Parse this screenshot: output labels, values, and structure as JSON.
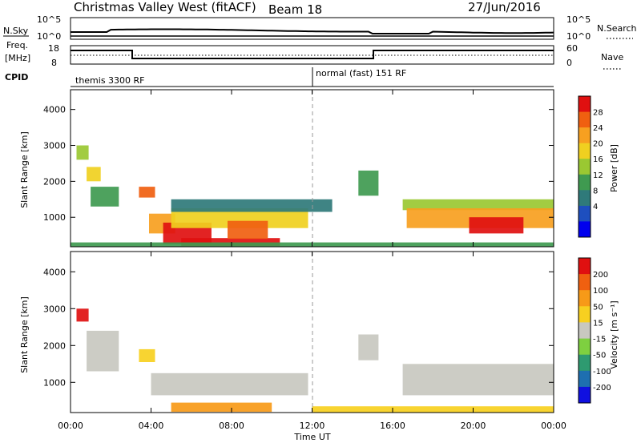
{
  "header": {
    "title": "Christmas Valley West (fitACF)",
    "beam": "Beam 18",
    "date": "27/Jun/2016"
  },
  "top_panels": {
    "nsky_label": "N.Sky",
    "nsky_ticks": [
      "10^5",
      "10^0"
    ],
    "nsearch_label": "N.Search",
    "nsearch_ticks": [
      "10^5",
      "10^0"
    ],
    "freq_label_line1": "Freq.",
    "freq_label_line2": "[MHz]",
    "freq_ticks": [
      "18",
      "8"
    ],
    "nave_label": "Nave",
    "nave_ticks": [
      "60",
      "0"
    ],
    "cpid_label": "CPID",
    "cpid_left": "themis 3300 RF",
    "cpid_right": "normal (fast) 151 RF"
  },
  "x_axis": {
    "label": "Time UT",
    "ticks": [
      "00:00",
      "04:00",
      "08:00",
      "12:00",
      "16:00",
      "20:00",
      "00:00"
    ]
  },
  "chart_data": [
    {
      "type": "heatmap",
      "name": "power",
      "ylabel": "Slant Range [km]",
      "yticks": [
        1000,
        2000,
        3000,
        4000
      ],
      "ylim": [
        180,
        4550
      ],
      "xlim": [
        0,
        24
      ],
      "colorbar": {
        "label": "Power [dB]",
        "ticks": [
          "28",
          "24",
          "20",
          "16",
          "12",
          "8",
          "4"
        ],
        "colors": [
          "#0000ee",
          "#1e4fbf",
          "#2f7a7a",
          "#3f9a50",
          "#9ac832",
          "#f0d020",
          "#f7a020",
          "#f06010",
          "#e01010"
        ]
      },
      "patches": [
        {
          "t": [
            0.3,
            0.9
          ],
          "r": [
            2600,
            3000
          ],
          "level": 4
        },
        {
          "t": [
            0.8,
            1.5
          ],
          "r": [
            2000,
            2400
          ],
          "level": 5
        },
        {
          "t": [
            1.0,
            2.4
          ],
          "r": [
            1300,
            1850
          ],
          "level": 3
        },
        {
          "t": [
            3.4,
            4.2
          ],
          "r": [
            1550,
            1850
          ],
          "level": 7
        },
        {
          "t": [
            3.9,
            5.2
          ],
          "r": [
            550,
            1100
          ],
          "level": 6
        },
        {
          "t": [
            4.6,
            7.0
          ],
          "r": [
            250,
            850
          ],
          "level": 8
        },
        {
          "t": [
            5.0,
            11.8
          ],
          "r": [
            700,
            1250
          ],
          "level": 5
        },
        {
          "t": [
            5.5,
            10.4
          ],
          "r": [
            200,
            420
          ],
          "level": 8
        },
        {
          "t": [
            7.8,
            9.8
          ],
          "r": [
            400,
            900
          ],
          "level": 7
        },
        {
          "t": [
            5.0,
            13.0
          ],
          "r": [
            1150,
            1500
          ],
          "level": 2
        },
        {
          "t": [
            14.3,
            15.3
          ],
          "r": [
            1600,
            2300
          ],
          "level": 3
        },
        {
          "t": [
            16.5,
            24.0
          ],
          "r": [
            1200,
            1500
          ],
          "level": 4
        },
        {
          "t": [
            16.7,
            24.0
          ],
          "r": [
            700,
            1250
          ],
          "level": 6
        },
        {
          "t": [
            19.8,
            22.5
          ],
          "r": [
            550,
            1000
          ],
          "level": 8
        },
        {
          "t": [
            0.0,
            24.0
          ],
          "r": [
            180,
            300
          ],
          "level": 3
        }
      ]
    },
    {
      "type": "heatmap",
      "name": "velocity",
      "ylabel": "Slant Range [km]",
      "yticks": [
        1000,
        2000,
        3000,
        4000
      ],
      "ylim": [
        180,
        4550
      ],
      "xlim": [
        0,
        24
      ],
      "colorbar": {
        "label": "Velocity [m s⁻¹]",
        "ticks": [
          "200",
          "100",
          "50",
          "15",
          "-15",
          "-50",
          "-100",
          "-200"
        ],
        "colors": [
          "#1010e0",
          "#1e6fb0",
          "#2e9a70",
          "#7ed040",
          "#c8c8c0",
          "#f7d020",
          "#f79a18",
          "#f06010",
          "#e01010"
        ]
      },
      "patches": [
        {
          "t": [
            0.3,
            0.9
          ],
          "r": [
            2650,
            3000
          ],
          "level": 8
        },
        {
          "t": [
            0.8,
            2.4
          ],
          "r": [
            1300,
            2400
          ],
          "level": 4
        },
        {
          "t": [
            3.4,
            4.2
          ],
          "r": [
            1550,
            1900
          ],
          "level": 5
        },
        {
          "t": [
            4.0,
            11.8
          ],
          "r": [
            650,
            1250
          ],
          "level": 4
        },
        {
          "t": [
            5.0,
            10.0
          ],
          "r": [
            200,
            450
          ],
          "level": 6
        },
        {
          "t": [
            14.3,
            15.3
          ],
          "r": [
            1600,
            2300
          ],
          "level": 4
        },
        {
          "t": [
            16.5,
            24.0
          ],
          "r": [
            650,
            1500
          ],
          "level": 4
        },
        {
          "t": [
            12.0,
            24.0
          ],
          "r": [
            180,
            350
          ],
          "level": 5
        }
      ]
    }
  ]
}
